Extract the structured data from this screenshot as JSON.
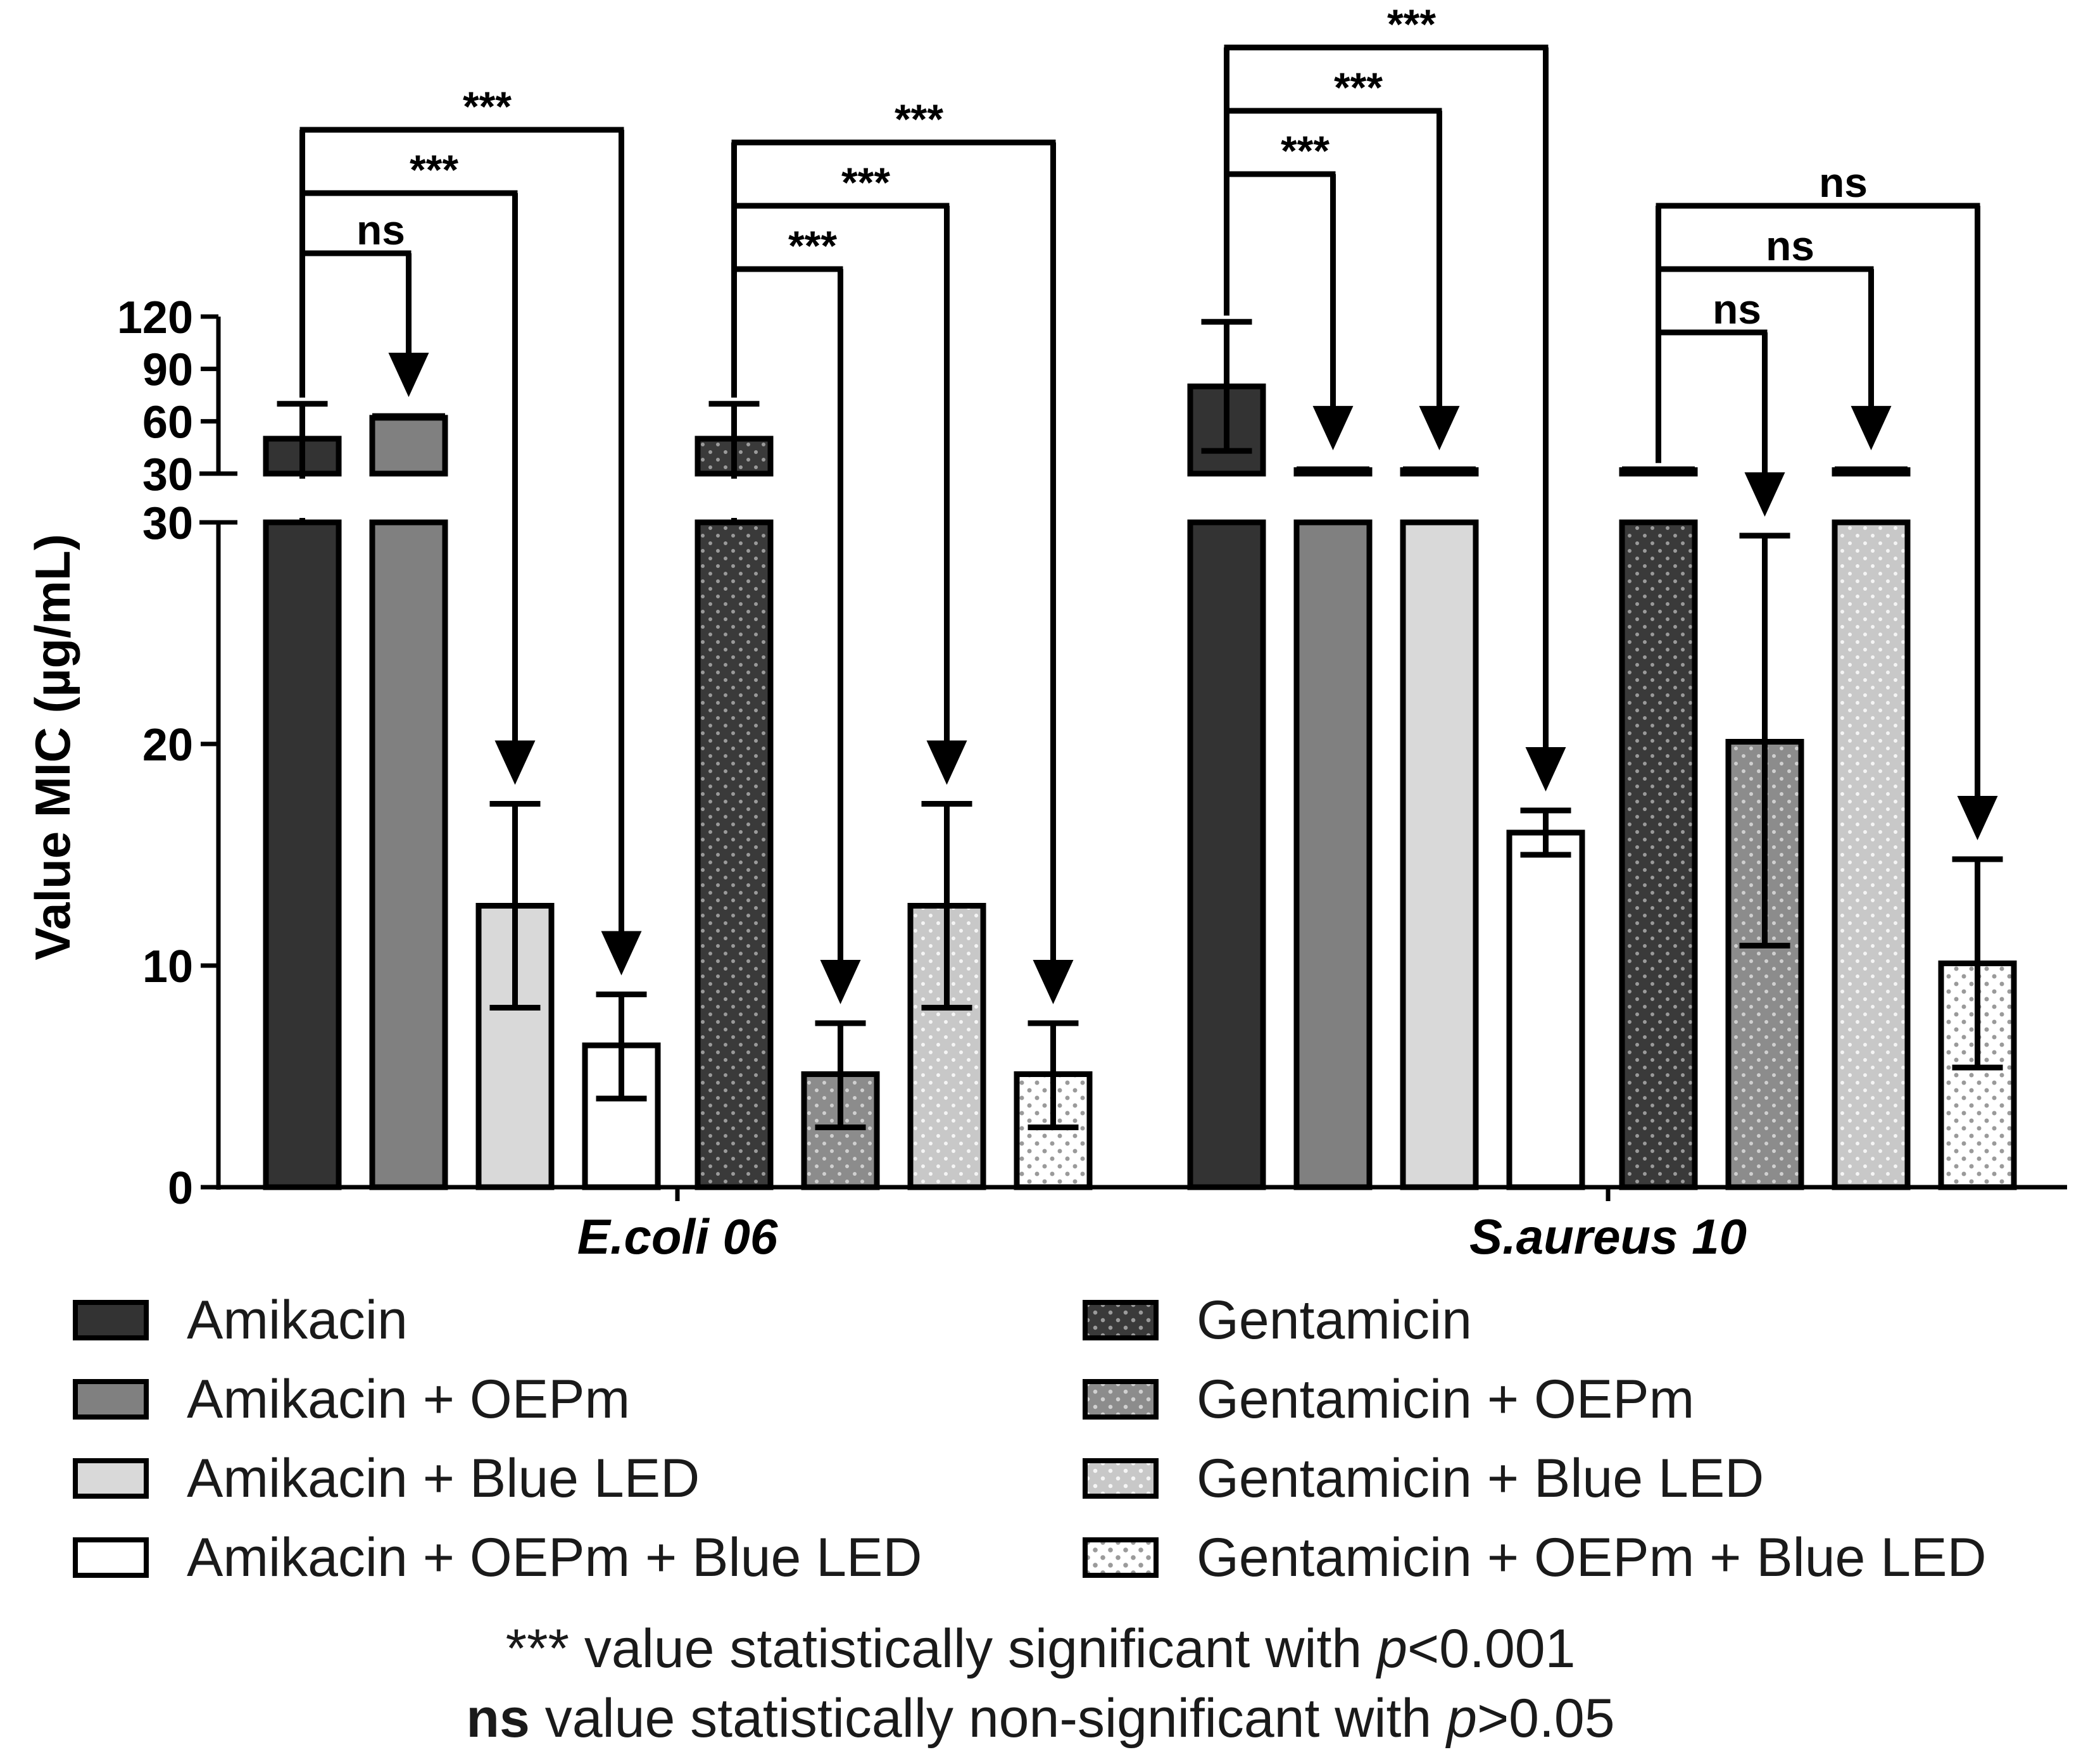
{
  "chart_data": {
    "type": "bar",
    "title": "",
    "ylabel": "Value MIC (µg/mL)",
    "xlabel": "",
    "y_axis": {
      "lower_range": [
        0,
        30
      ],
      "lower_ticks": [
        0,
        10,
        20,
        30
      ],
      "upper_range": [
        30,
        120
      ],
      "upper_ticks": [
        30,
        60,
        90,
        120
      ],
      "broken": true
    },
    "groups": [
      {
        "name": "E.coli 06",
        "bars": [
          {
            "series": "Amikacin",
            "value": 50,
            "error": [
              30,
              70
            ]
          },
          {
            "series": "Amikacin + OEPm",
            "value": 62,
            "error": [
              61,
              63
            ]
          },
          {
            "series": "Amikacin + Blue LED",
            "value": 12.7,
            "error": [
              8.1,
              17.3
            ]
          },
          {
            "series": "Amikacin + OEPm + Blue LED",
            "value": 6.4,
            "error": [
              4.0,
              8.7
            ]
          },
          {
            "series": "Gentamicin",
            "value": 50,
            "error": [
              30,
              70
            ]
          },
          {
            "series": "Gentamicin + OEPm",
            "value": 5.1,
            "error": [
              2.7,
              7.4
            ]
          },
          {
            "series": "Gentamicin + Blue LED",
            "value": 12.7,
            "error": [
              8.1,
              17.3
            ]
          },
          {
            "series": "Gentamicin + OEPm + Blue LED",
            "value": 5.1,
            "error": [
              2.7,
              7.4
            ]
          }
        ]
      },
      {
        "name": "S.aureus 10",
        "bars": [
          {
            "series": "Amikacin",
            "value": 80,
            "error": [
              43,
              117
            ]
          },
          {
            "series": "Amikacin + OEPm",
            "value": 32,
            "error": [
              31.5,
              32.5
            ]
          },
          {
            "series": "Amikacin + Blue LED",
            "value": 32,
            "error": [
              31.5,
              32.5
            ]
          },
          {
            "series": "Amikacin + OEPm + Blue LED",
            "value": 16,
            "error": [
              15.0,
              17.0
            ]
          },
          {
            "series": "Gentamicin",
            "value": 32,
            "error": [
              31.5,
              32.5
            ]
          },
          {
            "series": "Gentamicin + OEPm",
            "value": 20.1,
            "error": [
              10.9,
              29.4
            ]
          },
          {
            "series": "Gentamicin + Blue LED",
            "value": 32,
            "error": [
              31.5,
              32.5
            ]
          },
          {
            "series": "Gentamicin + OEPm + Blue LED",
            "value": 10.1,
            "error": [
              5.4,
              14.8
            ]
          }
        ]
      }
    ],
    "comparisons": [
      {
        "group": 0,
        "from": 0,
        "to": 1,
        "label": "ns"
      },
      {
        "group": 0,
        "from": 0,
        "to": 2,
        "label": "***"
      },
      {
        "group": 0,
        "from": 0,
        "to": 3,
        "label": "***"
      },
      {
        "group": 0,
        "from": 4,
        "to": 5,
        "label": "***"
      },
      {
        "group": 0,
        "from": 4,
        "to": 6,
        "label": "***"
      },
      {
        "group": 0,
        "from": 4,
        "to": 7,
        "label": "***"
      },
      {
        "group": 1,
        "from": 0,
        "to": 1,
        "label": "***"
      },
      {
        "group": 1,
        "from": 0,
        "to": 2,
        "label": "***"
      },
      {
        "group": 1,
        "from": 0,
        "to": 3,
        "label": "***"
      },
      {
        "group": 1,
        "from": 4,
        "to": 5,
        "label": "ns"
      },
      {
        "group": 1,
        "from": 4,
        "to": 6,
        "label": "ns"
      },
      {
        "group": 1,
        "from": 4,
        "to": 7,
        "label": "ns"
      }
    ],
    "series_colors": {
      "Amikacin": "#333333",
      "Amikacin + OEPm": "#808080",
      "Amikacin + Blue LED": "#d9d9d9",
      "Amikacin + OEPm + Blue LED": "#ffffff",
      "Gentamicin": "#3a3a3a",
      "Gentamicin + OEPm": "#8c8c8c",
      "Gentamicin + Blue LED": "#c8c8c8",
      "Gentamicin + OEPm + Blue LED": "#f2f2f2"
    }
  },
  "legend": [
    {
      "label": "Amikacin",
      "color": "#333333",
      "pattern": "solid"
    },
    {
      "label": "Amikacin + OEPm",
      "color": "#808080",
      "pattern": "solid"
    },
    {
      "label": "Amikacin + Blue LED",
      "color": "#d9d9d9",
      "pattern": "solid"
    },
    {
      "label": "Amikacin + OEPm + Blue LED",
      "color": "#ffffff",
      "pattern": "solid"
    },
    {
      "label": "Gentamicin",
      "color": "#3a3a3a",
      "pattern": "dots"
    },
    {
      "label": "Gentamicin + OEPm",
      "color": "#8c8c8c",
      "pattern": "dots"
    },
    {
      "label": "Gentamicin + Blue LED",
      "color": "#c8c8c8",
      "pattern": "dots"
    },
    {
      "label": "Gentamicin + OEPm + Blue LED",
      "color": "#f2f2f2",
      "pattern": "dots"
    }
  ],
  "notes": {
    "line1_stars": "***",
    "line1_text": " value statistically significant with ",
    "line1_p": "p",
    "line1_cmp": "<0.001",
    "line2_bold": "ns",
    "line2_text": " value statistically non-significant with ",
    "line2_p": "p",
    "line2_cmp": ">0.05"
  }
}
